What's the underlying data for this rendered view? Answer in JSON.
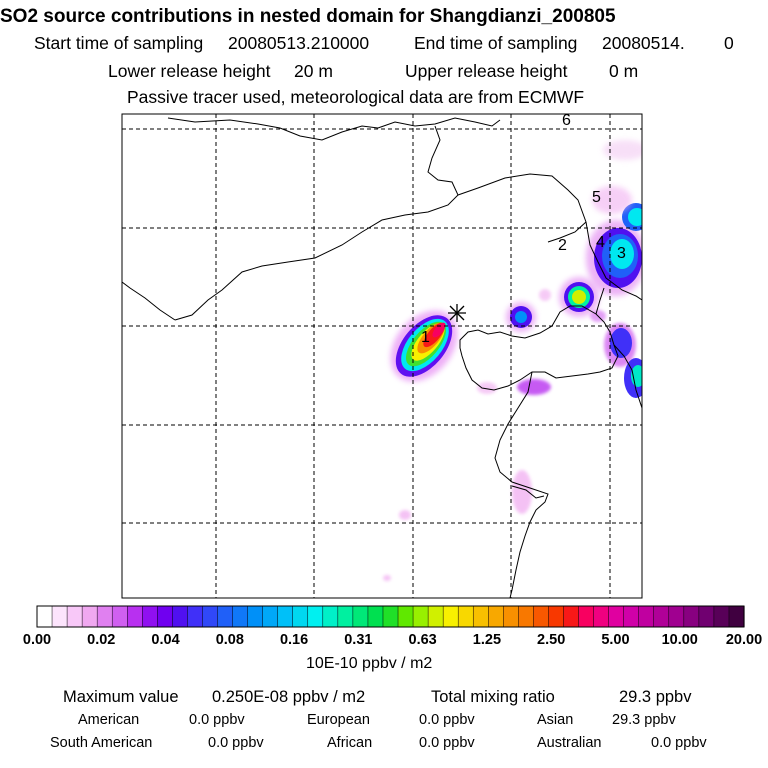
{
  "header": {
    "title": "SO2 source contributions in nested domain for Shangdianzi_200805",
    "start_label": "Start time of sampling",
    "start_value": "20080513.210000",
    "end_label": "End time of sampling",
    "end_value": "20080514.",
    "end_suffix": "0",
    "lower_label": "Lower release height",
    "lower_value": "20 m",
    "upper_label": "Upper release height",
    "upper_value": "0 m",
    "note": "Passive tracer used, meteorological data are from ECMWF"
  },
  "map": {
    "region_labels": [
      "1",
      "2",
      "3",
      "4",
      "5",
      "6"
    ],
    "station_marker": "asterisk",
    "colors": {
      "coast": "#000000",
      "grid": "#000000"
    }
  },
  "colorbar": {
    "tick_labels": [
      "0.00",
      "0.02",
      "0.04",
      "0.08",
      "0.16",
      "0.31",
      "0.63",
      "1.25",
      "2.50",
      "5.00",
      "10.00",
      "20.00"
    ],
    "colors": [
      "#ffffff",
      "#fce4fc",
      "#f8c8f8",
      "#f0a8f0",
      "#e080f0",
      "#d060f0",
      "#b830f0",
      "#9010f0",
      "#7000f0",
      "#5010f0",
      "#4030f8",
      "#3048f8",
      "#2060f8",
      "#1078f8",
      "#0090f8",
      "#00a8f8",
      "#00c0f8",
      "#00d8f0",
      "#00f0f0",
      "#00f0c8",
      "#00f0a0",
      "#00e878",
      "#00e050",
      "#20e028",
      "#60e800",
      "#98f000",
      "#d0f000",
      "#f8f000",
      "#f8d800",
      "#f8c000",
      "#f8a800",
      "#f89000",
      "#f87800",
      "#f85800",
      "#f83800",
      "#f81818",
      "#f80060",
      "#f00080",
      "#e000a0",
      "#d000a8",
      "#c000a0",
      "#b00098",
      "#a00090",
      "#880080",
      "#700070",
      "#580058",
      "#400040"
    ],
    "unit_label": "10E-10 ppbv / m2"
  },
  "summary": {
    "max_label": "Maximum value",
    "max_value": "0.250E-08 ppbv / m2",
    "total_label": "Total mixing ratio",
    "total_value": "29.3 ppbv",
    "regions": [
      {
        "name": "American",
        "value": "0.0 ppbv"
      },
      {
        "name": "European",
        "value": "0.0 ppbv"
      },
      {
        "name": "Asian",
        "value": "29.3 ppbv"
      },
      {
        "name": "South American",
        "value": "0.0 ppbv"
      },
      {
        "name": "African",
        "value": "0.0 ppbv"
      },
      {
        "name": "Australian",
        "value": "0.0 ppbv"
      }
    ]
  }
}
